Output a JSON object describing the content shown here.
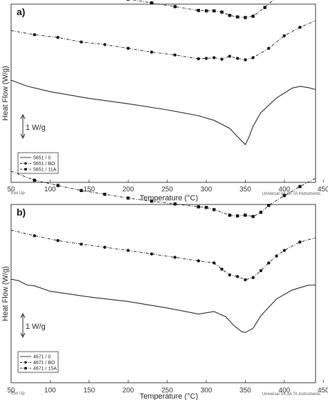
{
  "chart_data": [
    {
      "type": "line",
      "panel_label": "a)",
      "xlabel": "Temperature (°C)",
      "ylabel": "Heat Flow (W/g)",
      "xlim": [
        50,
        440
      ],
      "x_ticks": [
        50,
        100,
        150,
        200,
        250,
        300,
        350,
        400,
        450
      ],
      "exo_note": "Exo Up",
      "instrument_note": "Universal V4.3A TA Instruments",
      "scale_bar_label": "1 W/g",
      "grid": false,
      "legend_position": "bottom-left",
      "series": [
        {
          "name": "5651 / 0",
          "marker": "none",
          "x": [
            50,
            70,
            100,
            150,
            200,
            250,
            290,
            310,
            330,
            340,
            350,
            355,
            360,
            370,
            390,
            410,
            420,
            430,
            440
          ],
          "y": [
            0,
            -0.28,
            -0.55,
            -0.87,
            -1.13,
            -1.42,
            -1.7,
            -1.92,
            -2.3,
            -2.7,
            -3.08,
            -2.7,
            -2.2,
            -1.55,
            -0.85,
            -0.38,
            -0.3,
            -0.35,
            -0.45
          ]
        },
        {
          "name": "5651 / BO",
          "marker": "circle",
          "x": [
            50,
            80,
            110,
            140,
            170,
            200,
            230,
            260,
            290,
            300,
            310,
            320,
            330,
            340,
            350,
            360,
            380,
            400,
            420,
            440
          ],
          "y": [
            1.15,
            0.95,
            0.82,
            0.6,
            0.48,
            0.3,
            0.12,
            -0.02,
            -0.2,
            -0.18,
            -0.15,
            -0.22,
            -0.08,
            -0.18,
            -0.25,
            -0.15,
            0.3,
            0.9,
            1.3,
            1.62
          ]
        },
        {
          "name": "5651 / 11A",
          "marker": "square",
          "x": [
            50,
            80,
            110,
            140,
            170,
            200,
            230,
            260,
            290,
            300,
            310,
            320,
            330,
            340,
            350,
            360,
            375,
            390,
            405,
            420,
            440
          ],
          "y": [
            2.1,
            1.75,
            1.6,
            1.38,
            1.22,
            1.0,
            0.82,
            0.64,
            0.46,
            0.44,
            0.44,
            0.38,
            0.22,
            0.15,
            0.12,
            0.18,
            0.6,
            1.1,
            1.5,
            1.85,
            2.06
          ]
        }
      ]
    },
    {
      "type": "line",
      "panel_label": "b)",
      "xlabel": "Temperature (°C)",
      "ylabel": "Heat Flow (W/g)",
      "xlim": [
        50,
        440
      ],
      "x_ticks": [
        50,
        100,
        150,
        200,
        250,
        300,
        350,
        400,
        450
      ],
      "exo_note": "Exo Up",
      "instrument_note": "Universal V4.3A TA Instruments",
      "scale_bar_label": "1 W/g",
      "grid": false,
      "legend_position": "bottom-left",
      "series": [
        {
          "name": "4671 / 0",
          "marker": "none",
          "x": [
            50,
            60,
            70,
            80,
            100,
            150,
            200,
            250,
            290,
            310,
            325,
            335,
            345,
            350,
            360,
            370,
            390,
            410,
            430,
            440
          ],
          "y": [
            0,
            -0.08,
            -0.28,
            -0.32,
            -0.58,
            -0.85,
            -1.07,
            -1.38,
            -1.67,
            -1.55,
            -1.8,
            -2.2,
            -2.5,
            -2.55,
            -2.35,
            -1.75,
            -0.95,
            -0.52,
            -0.3,
            -0.28
          ]
        },
        {
          "name": "4671 / BO",
          "marker": "circle",
          "x": [
            50,
            80,
            110,
            140,
            170,
            200,
            230,
            260,
            290,
            310,
            320,
            330,
            340,
            350,
            360,
            370,
            380,
            390,
            400,
            420,
            440
          ],
          "y": [
            1.12,
            0.85,
            0.62,
            0.45,
            0.3,
            0.15,
            -0.02,
            -0.18,
            -0.35,
            -0.45,
            -0.75,
            -1.02,
            -1.1,
            -1.25,
            -1.15,
            -0.82,
            -0.45,
            -0.12,
            0.15,
            0.55,
            0.75
          ]
        },
        {
          "name": "4671 / 15A",
          "marker": "square",
          "x": [
            50,
            80,
            110,
            140,
            170,
            200,
            230,
            260,
            290,
            300,
            310,
            330,
            340,
            350,
            360,
            370,
            380,
            400,
            420,
            440
          ],
          "y": [
            2.28,
            1.85,
            1.6,
            1.36,
            1.18,
            1.0,
            0.85,
            0.72,
            0.58,
            0.55,
            0.45,
            0.18,
            0.15,
            0.18,
            0.12,
            0.32,
            0.65,
            1.12,
            1.55,
            1.95
          ]
        }
      ]
    }
  ]
}
